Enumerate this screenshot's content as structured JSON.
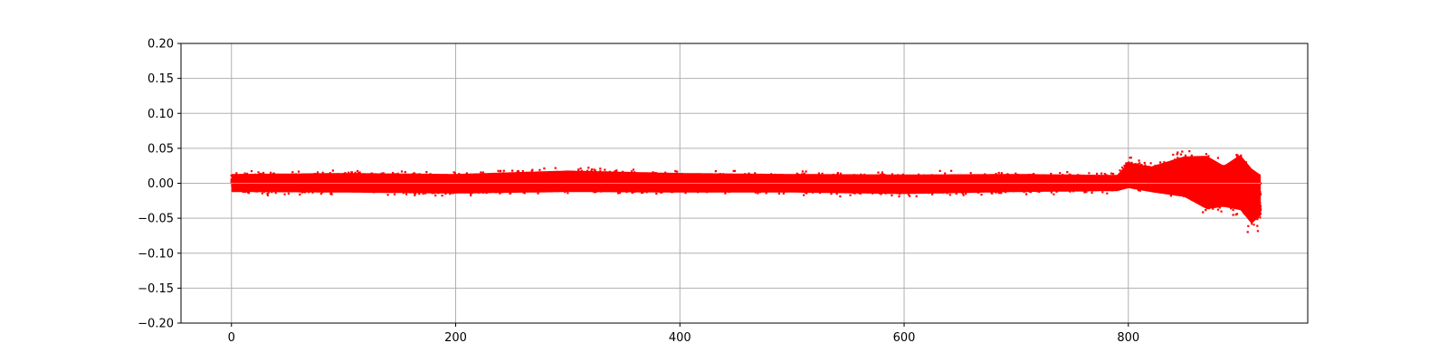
{
  "chart_data": {
    "type": "scatter",
    "title": "",
    "xlabel": "",
    "ylabel": "",
    "xlim": [
      -45,
      960
    ],
    "ylim": [
      -0.2,
      0.2
    ],
    "x_ticks": [
      0,
      200,
      400,
      600,
      800
    ],
    "x_tick_labels": [
      "0",
      "200",
      "400",
      "600",
      "800"
    ],
    "y_ticks": [
      -0.2,
      -0.15,
      -0.1,
      -0.05,
      0.0,
      0.05,
      0.1,
      0.15,
      0.2
    ],
    "y_tick_labels": [
      "−0.20",
      "−0.15",
      "−0.10",
      "−0.05",
      "0.00",
      "0.05",
      "0.10",
      "0.15",
      "0.20"
    ],
    "grid": true,
    "marker_color": "#ff0000",
    "series": [
      {
        "x_range": [
          0,
          918
        ],
        "envelope": [
          {
            "x": 0,
            "min": -0.018,
            "max": 0.019
          },
          {
            "x": 100,
            "min": -0.019,
            "max": 0.021
          },
          {
            "x": 200,
            "min": -0.021,
            "max": 0.019
          },
          {
            "x": 300,
            "min": -0.018,
            "max": 0.026
          },
          {
            "x": 400,
            "min": -0.019,
            "max": 0.021
          },
          {
            "x": 500,
            "min": -0.019,
            "max": 0.019
          },
          {
            "x": 600,
            "min": -0.022,
            "max": 0.018
          },
          {
            "x": 700,
            "min": -0.018,
            "max": 0.019
          },
          {
            "x": 790,
            "min": -0.016,
            "max": 0.017
          },
          {
            "x": 800,
            "min": -0.01,
            "max": 0.043
          },
          {
            "x": 820,
            "min": -0.018,
            "max": 0.034
          },
          {
            "x": 850,
            "min": -0.028,
            "max": 0.055
          },
          {
            "x": 870,
            "min": -0.053,
            "max": 0.056
          },
          {
            "x": 885,
            "min": -0.048,
            "max": 0.036
          },
          {
            "x": 900,
            "min": -0.055,
            "max": 0.058
          },
          {
            "x": 910,
            "min": -0.083,
            "max": 0.03
          },
          {
            "x": 918,
            "min": -0.065,
            "max": 0.017
          }
        ]
      }
    ]
  }
}
